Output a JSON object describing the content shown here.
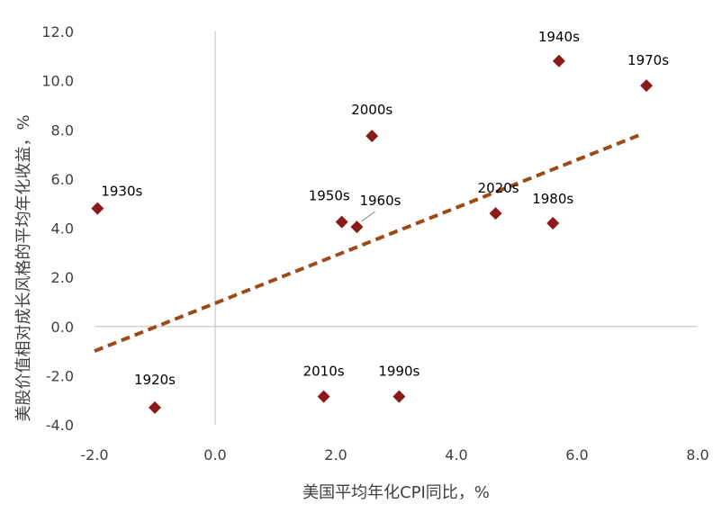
{
  "chart_data": {
    "type": "scatter",
    "xlabel": "美国平均年化CPI同比，%",
    "ylabel": "美股价值相对成长风格的平均年化收益，%",
    "xlim": [
      -2.0,
      8.0
    ],
    "ylim": [
      -4.0,
      12.0
    ],
    "x_ticks": [
      "-2.0",
      "0.0",
      "2.0",
      "4.0",
      "6.0",
      "8.0"
    ],
    "y_ticks": [
      "-4.0",
      "-2.0",
      "0.0",
      "2.0",
      "4.0",
      "6.0",
      "8.0",
      "10.0",
      "12.0"
    ],
    "grid": false,
    "legend": "none",
    "marker": "diamond",
    "colors": {
      "points": "#8B1A1A",
      "trendline": "#9C4A1A",
      "axis": "#bfbfbf",
      "leader": "#7f7f7f"
    },
    "points": [
      {
        "label": "1920s",
        "x": -1.0,
        "y": -3.3
      },
      {
        "label": "1930s",
        "x": -1.95,
        "y": 4.8
      },
      {
        "label": "1940s",
        "x": 5.7,
        "y": 10.8
      },
      {
        "label": "1950s",
        "x": 2.1,
        "y": 4.25
      },
      {
        "label": "1960s",
        "x": 2.35,
        "y": 4.05
      },
      {
        "label": "1970s",
        "x": 7.15,
        "y": 9.8
      },
      {
        "label": "1980s",
        "x": 5.6,
        "y": 4.2
      },
      {
        "label": "1990s",
        "x": 3.05,
        "y": -2.85
      },
      {
        "label": "2000s",
        "x": 2.6,
        "y": 7.75
      },
      {
        "label": "2010s",
        "x": 1.8,
        "y": -2.85
      },
      {
        "label": "2020s",
        "x": 4.65,
        "y": 4.6
      }
    ],
    "trendline": {
      "type": "linear",
      "x": [
        -2.0,
        7.1
      ],
      "y": [
        -1.0,
        7.85
      ]
    }
  }
}
